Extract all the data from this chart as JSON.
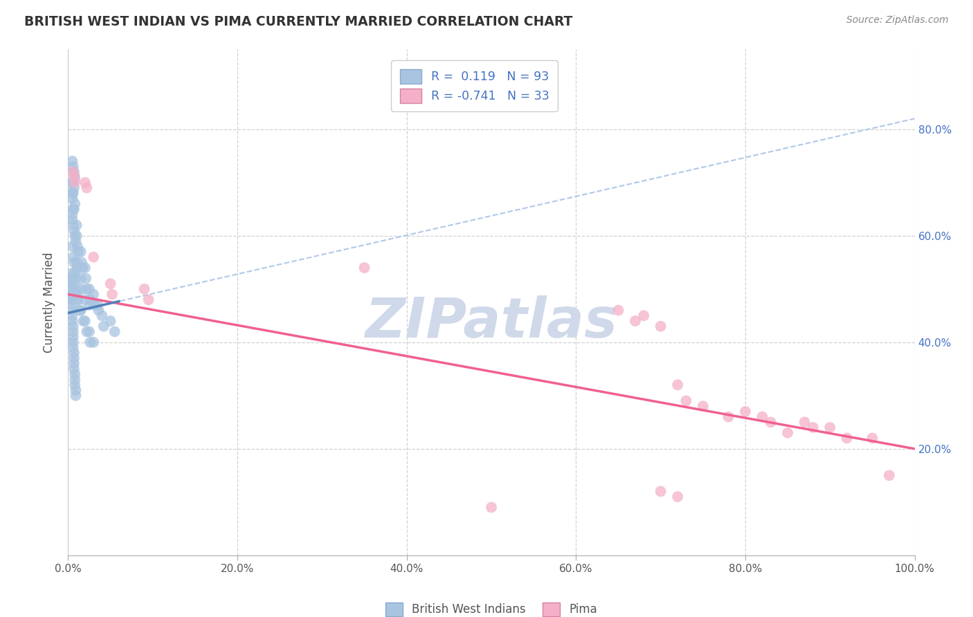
{
  "title": "BRITISH WEST INDIAN VS PIMA CURRENTLY MARRIED CORRELATION CHART",
  "source_text": "Source: ZipAtlas.com",
  "ylabel": "Currently Married",
  "watermark": "ZIPatlas",
  "xlim": [
    0.0,
    1.0
  ],
  "ylim": [
    0.0,
    0.95
  ],
  "xtick_vals": [
    0.0,
    0.2,
    0.4,
    0.6,
    0.8,
    1.0
  ],
  "ytick_vals": [
    0.2,
    0.4,
    0.6,
    0.8
  ],
  "blue_scatter_x": [
    0.005,
    0.006,
    0.007,
    0.008,
    0.005,
    0.006,
    0.007,
    0.005,
    0.006,
    0.005,
    0.008,
    0.007,
    0.006,
    0.005,
    0.005,
    0.006,
    0.007,
    0.008,
    0.009,
    0.01,
    0.01,
    0.011,
    0.012,
    0.01,
    0.011,
    0.015,
    0.016,
    0.017,
    0.015,
    0.016,
    0.02,
    0.021,
    0.022,
    0.02,
    0.025,
    0.026,
    0.025,
    0.03,
    0.031,
    0.035,
    0.036,
    0.04,
    0.042,
    0.005,
    0.005,
    0.005,
    0.005,
    0.005,
    0.006,
    0.006,
    0.006,
    0.006,
    0.006,
    0.007,
    0.007,
    0.007,
    0.007,
    0.008,
    0.008,
    0.008,
    0.009,
    0.009,
    0.004,
    0.004,
    0.004,
    0.003,
    0.003,
    0.05,
    0.055,
    0.005,
    0.006,
    0.007,
    0.01,
    0.011,
    0.015,
    0.02,
    0.025,
    0.03,
    0.005,
    0.006,
    0.007,
    0.008,
    0.009,
    0.01,
    0.012,
    0.014,
    0.018,
    0.022,
    0.026
  ],
  "blue_scatter_y": [
    0.74,
    0.73,
    0.72,
    0.71,
    0.7,
    0.7,
    0.69,
    0.68,
    0.68,
    0.67,
    0.66,
    0.65,
    0.65,
    0.64,
    0.63,
    0.62,
    0.61,
    0.6,
    0.59,
    0.62,
    0.6,
    0.58,
    0.57,
    0.55,
    0.54,
    0.57,
    0.55,
    0.54,
    0.52,
    0.5,
    0.54,
    0.52,
    0.5,
    0.48,
    0.5,
    0.48,
    0.47,
    0.49,
    0.47,
    0.47,
    0.46,
    0.45,
    0.43,
    0.48,
    0.47,
    0.46,
    0.45,
    0.44,
    0.43,
    0.42,
    0.41,
    0.4,
    0.39,
    0.38,
    0.37,
    0.36,
    0.35,
    0.34,
    0.33,
    0.32,
    0.31,
    0.3,
    0.5,
    0.49,
    0.48,
    0.52,
    0.51,
    0.44,
    0.42,
    0.53,
    0.52,
    0.51,
    0.49,
    0.48,
    0.46,
    0.44,
    0.42,
    0.4,
    0.58,
    0.56,
    0.55,
    0.53,
    0.52,
    0.5,
    0.48,
    0.46,
    0.44,
    0.42,
    0.4
  ],
  "pink_scatter_x": [
    0.006,
    0.007,
    0.008,
    0.02,
    0.022,
    0.03,
    0.05,
    0.052,
    0.09,
    0.095,
    0.35,
    0.65,
    0.67,
    0.68,
    0.7,
    0.72,
    0.73,
    0.75,
    0.78,
    0.8,
    0.82,
    0.83,
    0.85,
    0.87,
    0.88,
    0.9,
    0.92,
    0.95,
    0.97,
    0.5,
    0.7,
    0.72
  ],
  "pink_scatter_y": [
    0.72,
    0.71,
    0.7,
    0.7,
    0.69,
    0.56,
    0.51,
    0.49,
    0.5,
    0.48,
    0.54,
    0.46,
    0.44,
    0.45,
    0.43,
    0.32,
    0.29,
    0.28,
    0.26,
    0.27,
    0.26,
    0.25,
    0.23,
    0.25,
    0.24,
    0.24,
    0.22,
    0.22,
    0.15,
    0.09,
    0.12,
    0.11
  ],
  "blue_trend_x": [
    0.0,
    1.0
  ],
  "blue_trend_y_start": 0.455,
  "blue_trend_y_end": 0.82,
  "pink_trend_x": [
    0.0,
    1.0
  ],
  "pink_trend_y_start": 0.49,
  "pink_trend_y_end": 0.2,
  "dot_size": 130,
  "blue_dot_color": "#a8c4e0",
  "pink_dot_color": "#f4b0c8",
  "blue_line_color": "#b0c8e8",
  "blue_line_dark": "#5080b8",
  "pink_line_color": "#f06090",
  "grid_color": "#cccccc",
  "watermark_color": "#d0d9ea",
  "right_tick_color": "#4472c4",
  "bg_color": "#ffffff",
  "title_color": "#333333",
  "source_color": "#888888",
  "legend_r1_text": "R =  0.119   N = 93",
  "legend_r2_text": "R = -0.741   N = 33",
  "legend_label_color": "#4472c4",
  "bottom_label1": "British West Indians",
  "bottom_label2": "Pima"
}
